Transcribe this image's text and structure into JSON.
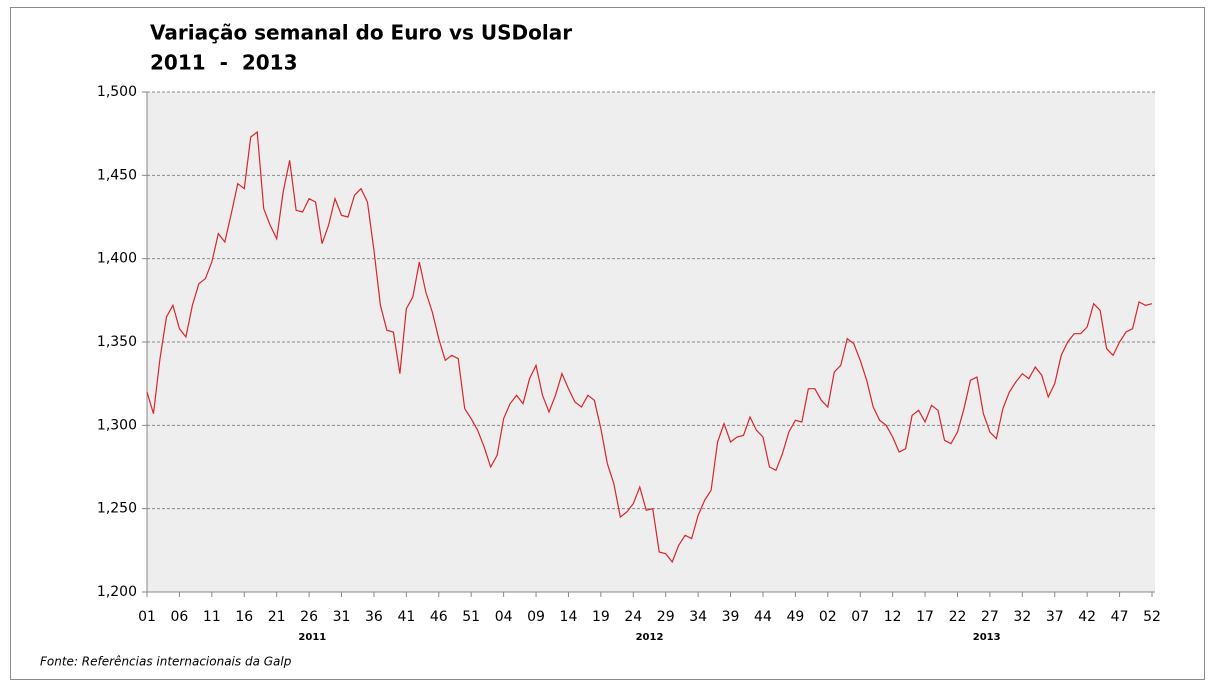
{
  "chart_data": {
    "type": "line",
    "title": "Variação semanal do Euro vs USDolar",
    "subtitle": "2011  -  2013",
    "source": "Fonte: Referências internacionais da Galp",
    "color": "#d9262b",
    "grid": true,
    "ylim": [
      1.2,
      1.5
    ],
    "yticks": [
      {
        "value": 1.2,
        "label": "1,200"
      },
      {
        "value": 1.25,
        "label": "1,250"
      },
      {
        "value": 1.3,
        "label": "1,300"
      },
      {
        "value": 1.35,
        "label": "1,350"
      },
      {
        "value": 1.4,
        "label": "1,400"
      },
      {
        "value": 1.45,
        "label": "1,450"
      },
      {
        "value": 1.5,
        "label": "1,500"
      }
    ],
    "groups": [
      "2011",
      "2012",
      "2013"
    ],
    "categories": [
      "01",
      null,
      null,
      null,
      null,
      "06",
      null,
      null,
      null,
      null,
      "11",
      null,
      null,
      null,
      null,
      "16",
      null,
      null,
      null,
      null,
      "21",
      null,
      null,
      null,
      null,
      "26",
      null,
      null,
      null,
      null,
      "31",
      null,
      null,
      null,
      null,
      "36",
      null,
      null,
      null,
      null,
      "41",
      null,
      null,
      null,
      null,
      "46",
      null,
      null,
      null,
      null,
      "51",
      null,
      null,
      null,
      null,
      "04",
      null,
      null,
      null,
      null,
      "09",
      null,
      null,
      null,
      null,
      "14",
      null,
      null,
      null,
      null,
      "19",
      null,
      null,
      null,
      null,
      "24",
      null,
      null,
      null,
      null,
      "29",
      null,
      null,
      null,
      null,
      "34",
      null,
      null,
      null,
      null,
      "39",
      null,
      null,
      null,
      null,
      "44",
      null,
      null,
      null,
      null,
      "49",
      null,
      null,
      null,
      null,
      "02",
      null,
      null,
      null,
      null,
      "07",
      null,
      null,
      null,
      null,
      "12",
      null,
      null,
      null,
      null,
      "17",
      null,
      null,
      null,
      null,
      "22",
      null,
      null,
      null,
      null,
      "27",
      null,
      null,
      null,
      null,
      "32",
      null,
      null,
      null,
      null,
      "37",
      null,
      null,
      null,
      null,
      "42",
      null,
      null,
      null,
      null,
      "47",
      null,
      null,
      null,
      null,
      "52"
    ],
    "values": [
      1.32,
      1.307,
      1.34,
      1.365,
      1.372,
      1.358,
      1.353,
      1.372,
      1.385,
      1.388,
      1.398,
      1.415,
      1.41,
      1.427,
      1.445,
      1.442,
      1.473,
      1.476,
      1.43,
      1.42,
      1.412,
      1.44,
      1.459,
      1.429,
      1.428,
      1.436,
      1.434,
      1.409,
      1.42,
      1.436,
      1.426,
      1.425,
      1.438,
      1.442,
      1.434,
      1.405,
      1.372,
      1.357,
      1.356,
      1.331,
      1.37,
      1.377,
      1.398,
      1.38,
      1.368,
      1.352,
      1.339,
      1.342,
      1.34,
      1.31,
      1.304,
      1.297,
      1.287,
      1.275,
      1.282,
      1.304,
      1.313,
      1.318,
      1.313,
      1.328,
      1.336,
      1.318,
      1.308,
      1.318,
      1.331,
      1.322,
      1.314,
      1.311,
      1.318,
      1.315,
      1.298,
      1.277,
      1.265,
      1.245,
      1.248,
      1.253,
      1.263,
      1.249,
      1.25,
      1.224,
      1.223,
      1.218,
      1.228,
      1.234,
      1.232,
      1.246,
      1.255,
      1.261,
      1.29,
      1.301,
      1.29,
      1.293,
      1.294,
      1.305,
      1.297,
      1.293,
      1.275,
      1.273,
      1.283,
      1.296,
      1.303,
      1.302,
      1.322,
      1.322,
      1.315,
      1.311,
      1.332,
      1.336,
      1.352,
      1.349,
      1.339,
      1.327,
      1.311,
      1.303,
      1.3,
      1.293,
      1.284,
      1.286,
      1.306,
      1.309,
      1.302,
      1.312,
      1.309,
      1.291,
      1.289,
      1.296,
      1.31,
      1.327,
      1.329,
      1.307,
      1.296,
      1.292,
      1.31,
      1.32,
      1.326,
      1.331,
      1.328,
      1.335,
      1.33,
      1.317,
      1.325,
      1.342,
      1.35,
      1.355,
      1.355,
      1.359,
      1.373,
      1.369,
      1.346,
      1.342,
      1.35,
      1.356,
      1.358,
      1.374,
      1.372,
      1.373
    ]
  }
}
